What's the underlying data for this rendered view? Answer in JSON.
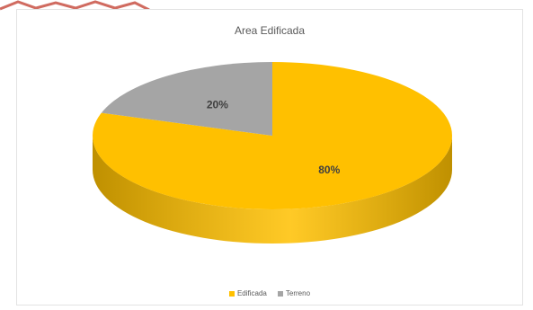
{
  "colors": {
    "edificada": "#ffc000",
    "edificada_side": "#bf9000",
    "terreno": "#a5a5a5",
    "terreno_side": "#7c7c7c",
    "frame_border": "#e3e3e3",
    "corner_residue": "#c0392b"
  },
  "chart_data": {
    "type": "pie",
    "title": "Area Edificada",
    "categories": [
      "Edificada",
      "Terreno"
    ],
    "values": [
      80,
      20
    ],
    "data_labels": [
      "80%",
      "20%"
    ],
    "legend_position": "bottom",
    "three_d": true
  }
}
